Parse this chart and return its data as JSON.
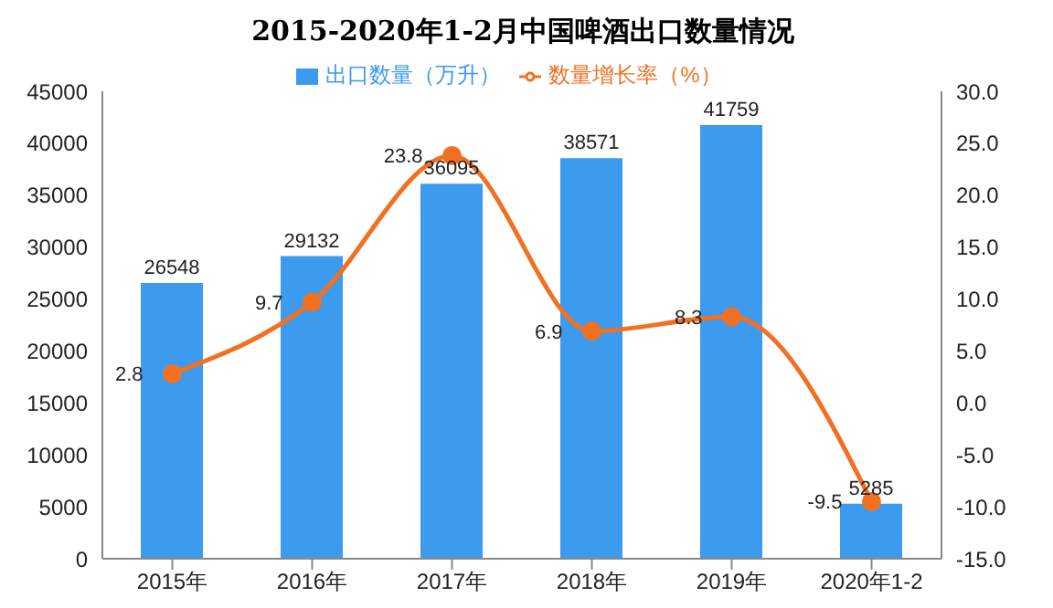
{
  "chart_data": {
    "type": "bar",
    "title": "2015-2020年1-2月中国啤酒出口数量情况",
    "categories": [
      "2015年",
      "2016年",
      "2017年",
      "2018年",
      "2019年",
      "2020年1-2"
    ],
    "series": [
      {
        "name": "出口数量（万升）",
        "color": "#3d9bef",
        "values": [
          26548,
          29132,
          36095,
          38571,
          41759,
          5285
        ]
      },
      {
        "name": "数量增长率（%）",
        "type": "line",
        "axis": "y2",
        "color": "#f07122",
        "marker": "circle",
        "values": [
          2.8,
          9.7,
          23.8,
          6.9,
          8.3,
          -9.5
        ]
      }
    ],
    "ylim": [
      0,
      45000
    ],
    "yticks": [
      0,
      5000,
      10000,
      15000,
      20000,
      25000,
      30000,
      35000,
      40000,
      45000
    ],
    "y2lim": [
      -15,
      30
    ],
    "y2ticks": [
      {
        "value": -15,
        "label": "-15.0"
      },
      {
        "value": -10,
        "label": "-10.0"
      },
      {
        "value": -5,
        "label": "-5.0"
      },
      {
        "value": 0,
        "label": "0.0"
      },
      {
        "value": 5,
        "label": "5.0"
      },
      {
        "value": 10,
        "label": "10.0"
      },
      {
        "value": 15,
        "label": "15.0"
      },
      {
        "value": 20,
        "label": "20.0"
      },
      {
        "value": 25,
        "label": "25.0"
      },
      {
        "value": 30,
        "label": "30.0"
      }
    ],
    "data_labels": true,
    "legend": "top",
    "grid": false
  }
}
